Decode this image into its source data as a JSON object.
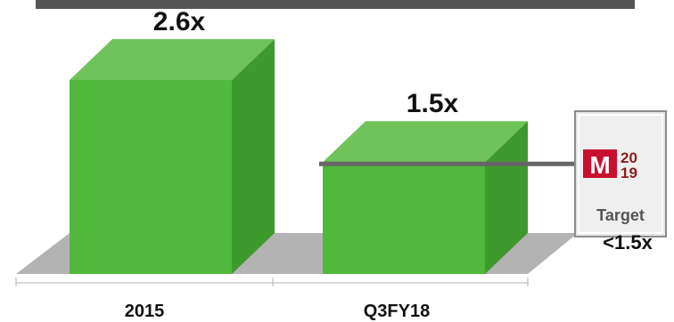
{
  "chart_data": {
    "type": "bar",
    "categories": [
      "2015",
      "Q3FY18"
    ],
    "values": [
      2.6,
      1.5
    ],
    "value_labels": [
      "2.6x",
      "1.5x"
    ],
    "title": "",
    "xlabel": "",
    "ylabel": "",
    "ylim": [
      0,
      3.0
    ],
    "grid": false,
    "target": {
      "value": 1.5,
      "logo_letter": "M",
      "logo_year_top": "20",
      "logo_year_bottom": "19",
      "word": "Target",
      "label": "<1.5x"
    }
  },
  "colors": {
    "bar_front": "#50B83C",
    "bar_side": "#3E9A2C",
    "bar_top": "#6FC35A",
    "floor": "#B3B3B3",
    "top_band": "#555555",
    "target_line": "#666666",
    "logo_red": "#C8102E"
  }
}
